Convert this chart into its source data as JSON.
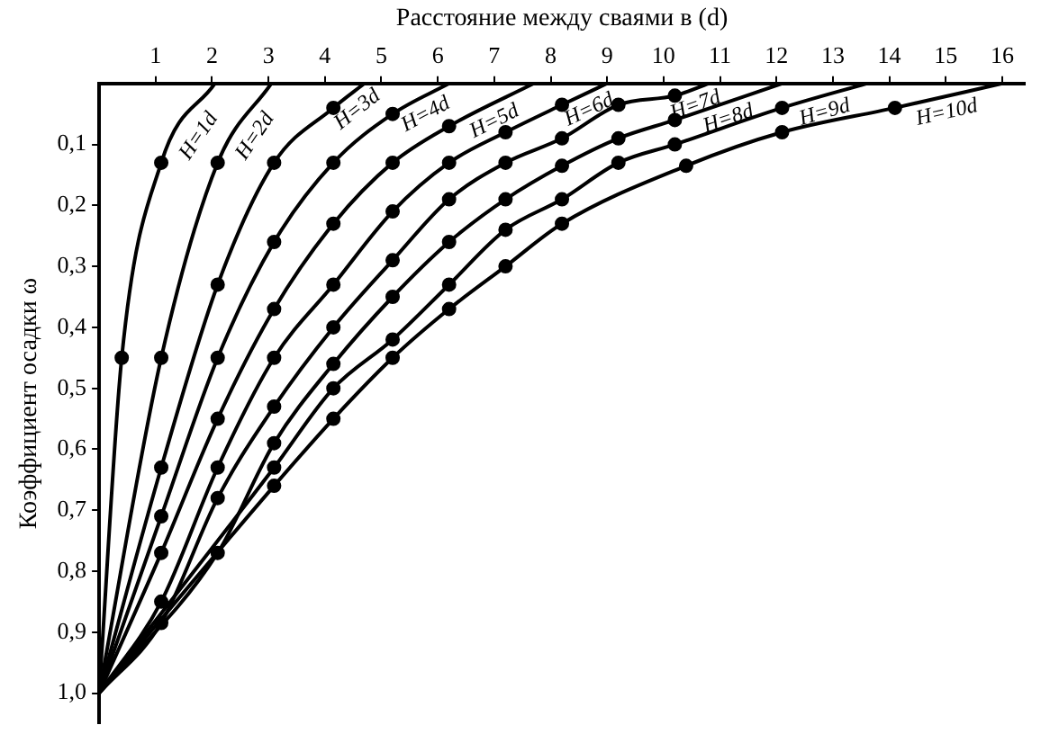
{
  "chart_data": {
    "type": "line",
    "xlabel": "Расстояние между сваями в (d)",
    "ylabel": "Коэффициент осадки ω",
    "xlim": [
      0,
      16.4
    ],
    "xticks": [
      1,
      2,
      3,
      4,
      5,
      6,
      7,
      8,
      9,
      10,
      11,
      12,
      13,
      14,
      15,
      16
    ],
    "ylim": [
      1.05,
      0
    ],
    "yticks": [
      {
        "value": 0.1,
        "label": "0,1"
      },
      {
        "value": 0.2,
        "label": "0,2"
      },
      {
        "value": 0.3,
        "label": "0,3"
      },
      {
        "value": 0.4,
        "label": "0,4"
      },
      {
        "value": 0.5,
        "label": "0,5"
      },
      {
        "value": 0.6,
        "label": "0,6"
      },
      {
        "value": 0.7,
        "label": "0,7"
      },
      {
        "value": 0.8,
        "label": "0,8"
      },
      {
        "value": 0.9,
        "label": "0,9"
      },
      {
        "value": 1.0,
        "label": "1,0"
      }
    ],
    "grid": false,
    "legend": false,
    "marker": "circle",
    "line_style": "solid",
    "series": [
      {
        "name": "H=1d",
        "color": "#000000",
        "x": [
          0,
          0.4,
          1.1,
          2.05
        ],
        "values": [
          1.0,
          0.45,
          0.13,
          0
        ]
      },
      {
        "name": "H=2d",
        "color": "#000000",
        "x": [
          0,
          1.1,
          2.1,
          3.05
        ],
        "values": [
          1.0,
          0.45,
          0.13,
          0
        ]
      },
      {
        "name": "H=3d",
        "color": "#000000",
        "x": [
          0,
          1.1,
          2.1,
          3.1,
          4.15,
          4.7
        ],
        "values": [
          1.0,
          0.63,
          0.33,
          0.13,
          0.04,
          0
        ]
      },
      {
        "name": "H=4d",
        "color": "#000000",
        "x": [
          0,
          1.1,
          2.1,
          3.1,
          4.15,
          5.2,
          6.2
        ],
        "values": [
          1.0,
          0.71,
          0.45,
          0.26,
          0.13,
          0.05,
          0
        ]
      },
      {
        "name": "H=5d",
        "color": "#000000",
        "x": [
          0,
          1.1,
          2.1,
          3.1,
          4.15,
          5.2,
          6.2,
          7.7
        ],
        "values": [
          1.0,
          0.77,
          0.55,
          0.37,
          0.23,
          0.13,
          0.07,
          0
        ]
      },
      {
        "name": "H=6d",
        "color": "#000000",
        "x": [
          0,
          1.1,
          2.1,
          3.1,
          4.15,
          5.2,
          6.2,
          7.2,
          8.2,
          9.0
        ],
        "values": [
          1.0,
          0.85,
          0.63,
          0.45,
          0.33,
          0.21,
          0.13,
          0.08,
          0.035,
          0
        ]
      },
      {
        "name": "H=7d",
        "color": "#000000",
        "x": [
          0,
          1.1,
          2.1,
          3.1,
          4.15,
          5.2,
          6.2,
          7.2,
          8.2,
          9.2,
          10.2,
          10.8
        ],
        "values": [
          1.0,
          0.885,
          0.68,
          0.53,
          0.4,
          0.29,
          0.19,
          0.13,
          0.09,
          0.035,
          0.02,
          0
        ]
      },
      {
        "name": "H=8d",
        "color": "#000000",
        "x": [
          0,
          2.1,
          3.1,
          4.15,
          5.2,
          6.2,
          7.2,
          8.2,
          9.2,
          10.2,
          12.1
        ],
        "values": [
          1.0,
          0.77,
          0.59,
          0.46,
          0.35,
          0.26,
          0.19,
          0.135,
          0.09,
          0.06,
          0
        ]
      },
      {
        "name": "H=9d",
        "color": "#000000",
        "x": [
          0,
          3.1,
          4.15,
          5.2,
          6.2,
          7.2,
          8.2,
          9.2,
          10.2,
          12.1,
          13.6
        ],
        "values": [
          1.0,
          0.63,
          0.5,
          0.42,
          0.33,
          0.24,
          0.19,
          0.13,
          0.1,
          0.04,
          0
        ]
      },
      {
        "name": "H=10d",
        "color": "#000000",
        "x": [
          0,
          3.1,
          4.15,
          5.2,
          6.2,
          7.2,
          8.2,
          10.4,
          12.1,
          14.1,
          16.0
        ],
        "values": [
          1.0,
          0.66,
          0.55,
          0.45,
          0.37,
          0.3,
          0.23,
          0.135,
          0.08,
          0.04,
          0
        ]
      }
    ]
  }
}
